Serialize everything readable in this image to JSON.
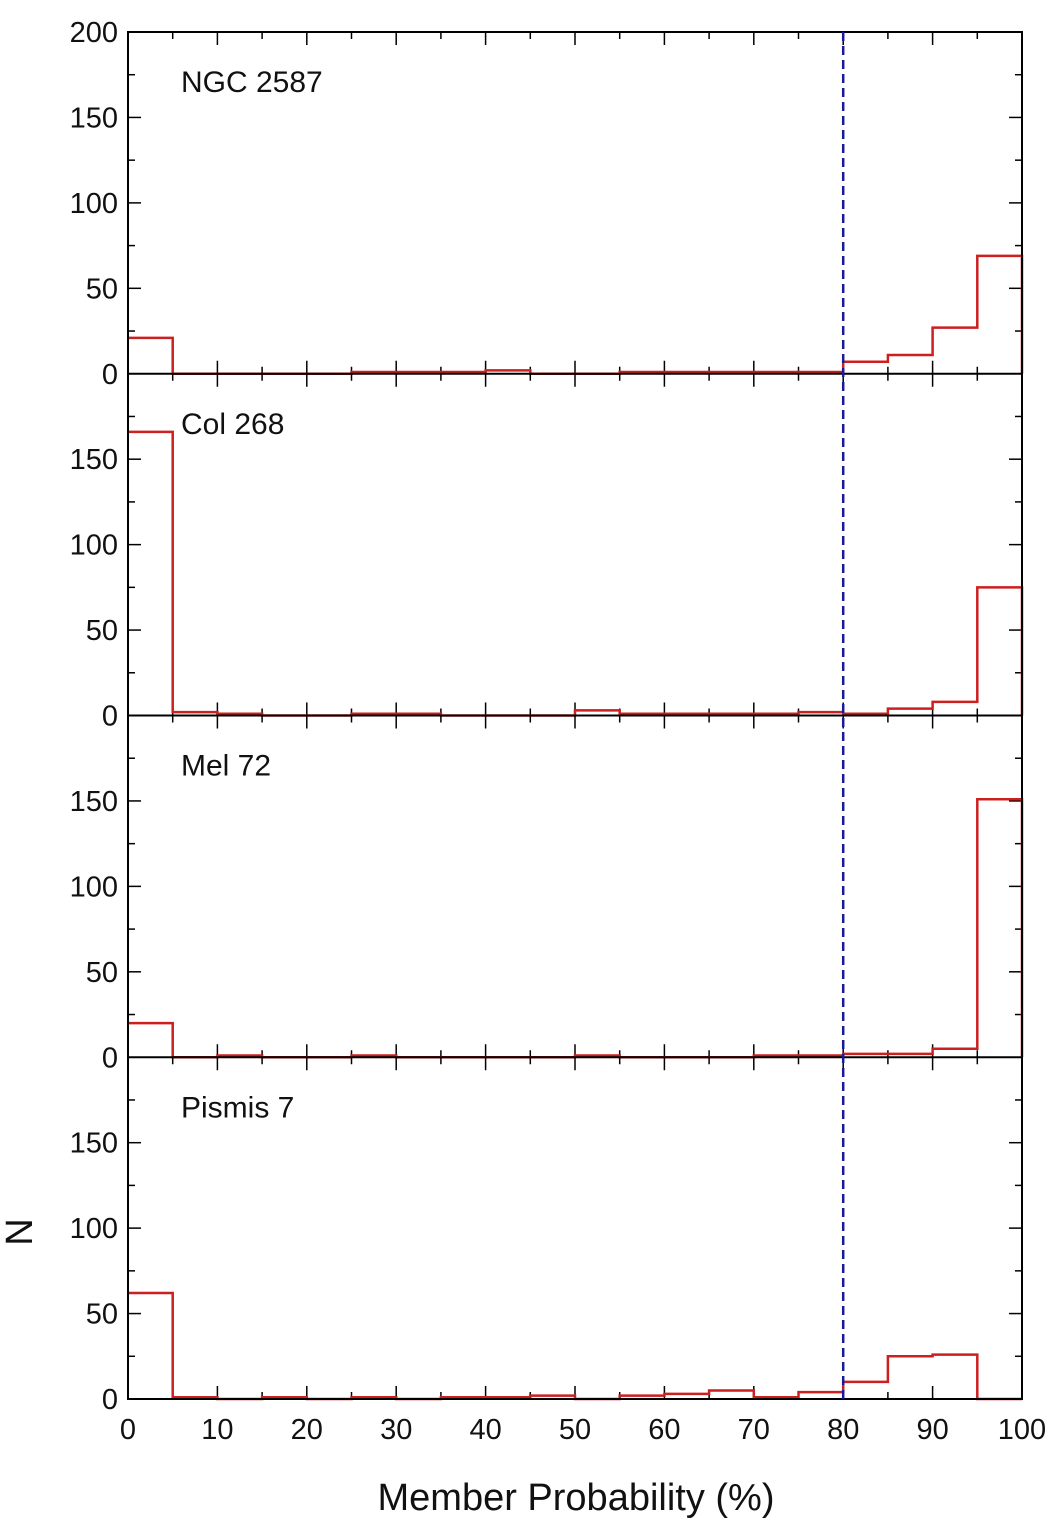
{
  "chart_data": {
    "type": "histogram",
    "xlabel": "Member Probability (%)",
    "ylabel": "N",
    "xlim": [
      0,
      100
    ],
    "ylim": [
      0,
      200
    ],
    "x_ticks": [
      "0",
      "10",
      "20",
      "30",
      "40",
      "50",
      "60",
      "70",
      "80",
      "90",
      "100"
    ],
    "y_ticks": [
      "0",
      "50",
      "100",
      "150",
      "200"
    ],
    "bin_edges": [
      0,
      5,
      10,
      15,
      20,
      25,
      30,
      35,
      40,
      45,
      50,
      55,
      60,
      65,
      70,
      75,
      80,
      85,
      90,
      95,
      100
    ],
    "threshold_x": 80,
    "histogram_color": "#cc1f1f",
    "threshold_color": "#1a1a99",
    "panels": [
      {
        "name": "NGC 2587",
        "values": [
          21,
          0,
          0,
          0,
          0,
          1,
          1,
          1,
          2,
          0,
          0,
          1,
          1,
          1,
          1,
          1,
          7,
          11,
          27,
          69
        ]
      },
      {
        "name": "Col 268",
        "values": [
          166,
          2,
          1,
          0,
          0,
          1,
          1,
          0,
          0,
          0,
          3,
          1,
          1,
          1,
          1,
          2,
          1,
          4,
          8,
          75
        ]
      },
      {
        "name": "Mel 72",
        "values": [
          20,
          0,
          1,
          0,
          0,
          1,
          0,
          0,
          0,
          0,
          1,
          0,
          0,
          0,
          1,
          1,
          2,
          2,
          5,
          151
        ]
      },
      {
        "name": "Pismis 7",
        "values": [
          62,
          1,
          0,
          1,
          0,
          1,
          0,
          1,
          1,
          2,
          0,
          2,
          3,
          5,
          1,
          4,
          10,
          25,
          26,
          0
        ]
      }
    ]
  }
}
